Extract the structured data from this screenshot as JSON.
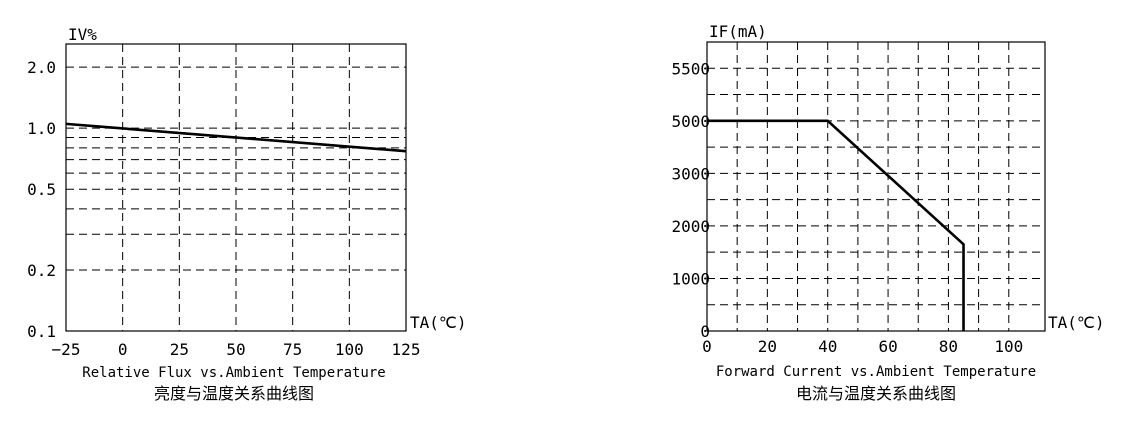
{
  "chart_data": [
    {
      "type": "line",
      "ylabel": "IV%",
      "xlabel": "TA(℃)",
      "caption_en": "Relative Flux vs.Ambient Temperature",
      "caption_cn": "亮度与温度关系曲线图",
      "x_ticks": [
        {
          "value": -25,
          "label": "−25"
        },
        {
          "value": 0,
          "label": "0"
        },
        {
          "value": 25,
          "label": "25"
        },
        {
          "value": 50,
          "label": "50"
        },
        {
          "value": 75,
          "label": "75"
        },
        {
          "value": 100,
          "label": "100"
        },
        {
          "value": 125,
          "label": "125"
        }
      ],
      "y_ticks": [
        {
          "value": 0.1,
          "label": "0.1"
        },
        {
          "value": 0.2,
          "label": "0.2"
        },
        {
          "value": 0.5,
          "label": "0.5"
        },
        {
          "value": 1.0,
          "label": "1.0"
        },
        {
          "value": 2.0,
          "label": "2.0"
        }
      ],
      "y_minor_gridlines": [
        0.3,
        0.4,
        0.6,
        0.7,
        0.8,
        0.9
      ],
      "xlim": [
        -25,
        125
      ],
      "ylim": [
        0.1,
        2.6
      ],
      "y_scale": "log",
      "grid": true,
      "points": [
        [
          -25,
          1.05
        ],
        [
          125,
          0.77
        ]
      ]
    },
    {
      "type": "line",
      "ylabel": "IF(mA)",
      "xlabel": "TA(℃)",
      "caption_en": "Forward Current vs.Ambient Temperature",
      "caption_cn": "电流与温度关系曲线图",
      "x_ticks": [
        {
          "value": 0,
          "label": "0"
        },
        {
          "value": 20,
          "label": "20"
        },
        {
          "value": 40,
          "label": "40"
        },
        {
          "value": 60,
          "label": "60"
        },
        {
          "value": 80,
          "label": "80"
        },
        {
          "value": 100,
          "label": "100"
        }
      ],
      "x_minor_gridlines": [
        10,
        30,
        50,
        70,
        90
      ],
      "y_ticks": [
        {
          "pos": 0,
          "label": "0"
        },
        {
          "pos": 1,
          "label": "1000"
        },
        {
          "pos": 2,
          "label": "2000"
        },
        {
          "pos": 3,
          "label": "3000"
        },
        {
          "pos": 4,
          "label": "5000"
        },
        {
          "pos": 5,
          "label": "5500"
        }
      ],
      "y_minor_gridlines": [
        0.5,
        1.5,
        2.5,
        3.5,
        4.5
      ],
      "xlim": [
        0,
        112
      ],
      "ylim": [
        0,
        5.5
      ],
      "grid": true,
      "points": [
        [
          0,
          4
        ],
        [
          40,
          4
        ],
        [
          85,
          1.65
        ],
        [
          85,
          0
        ]
      ]
    }
  ]
}
